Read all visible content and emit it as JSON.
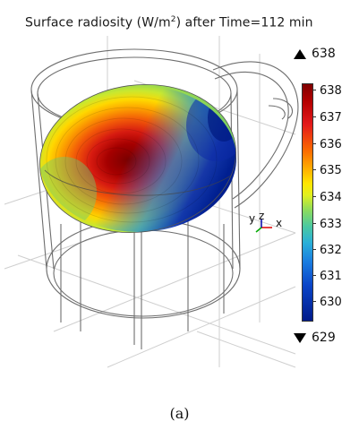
{
  "title_prefix": "Surface radiosity (W/m",
  "title_sup": "2",
  "title_suffix": ") after Time=112 min",
  "colorbar": {
    "max_label": "638",
    "min_label": "629",
    "ticks": [
      "638",
      "637",
      "636",
      "635",
      "634",
      "633",
      "632",
      "631",
      "630"
    ]
  },
  "axes": {
    "x": "x",
    "y": "y",
    "z": "z"
  },
  "caption": "(a)"
}
